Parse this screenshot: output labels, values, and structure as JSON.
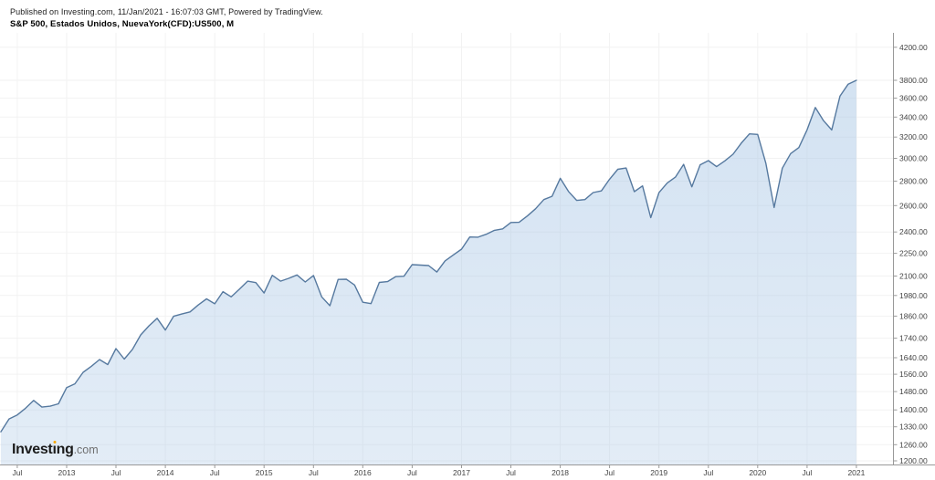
{
  "header": {
    "published": "Published on Investing.com, 11/Jan/2021 - 16:07:03 GMT, Powered by TradingView.",
    "title": "S&P 500, Estados Unidos, NuevaYork(CFD):US500, M"
  },
  "logo": {
    "part1": "Invest",
    "dotless_i": "ı",
    "part2": "ng",
    "tld": ".com"
  },
  "chart_data": {
    "type": "area",
    "title": "S&P 500, Estados Unidos, NuevaYork(CFD):US500, M",
    "symbol": "NuevaYork(CFD):US500",
    "interval": "M",
    "x_start": "May 2012",
    "x_end": "Jan 2021",
    "y_scale": "log",
    "ylim": [
      1185,
      4388
    ],
    "grid": true,
    "legend_position": "none",
    "y_ticks": [
      1200,
      1260,
      1330,
      1400,
      1480,
      1560,
      1640,
      1740,
      1860,
      1980,
      2100,
      2250,
      2400,
      2600,
      2800,
      3000,
      3200,
      3400,
      3600,
      3800,
      4200
    ],
    "x_ticks": [
      {
        "i": 2,
        "label": "Jul"
      },
      {
        "i": 8,
        "label": "2013"
      },
      {
        "i": 14,
        "label": "Jul"
      },
      {
        "i": 20,
        "label": "2014"
      },
      {
        "i": 26,
        "label": "Jul"
      },
      {
        "i": 32,
        "label": "2015"
      },
      {
        "i": 38,
        "label": "Jul"
      },
      {
        "i": 44,
        "label": "2016"
      },
      {
        "i": 50,
        "label": "Jul"
      },
      {
        "i": 56,
        "label": "2017"
      },
      {
        "i": 62,
        "label": "Jul"
      },
      {
        "i": 68,
        "label": "2018"
      },
      {
        "i": 74,
        "label": "Jul"
      },
      {
        "i": 80,
        "label": "2019"
      },
      {
        "i": 86,
        "label": "Jul"
      },
      {
        "i": 92,
        "label": "2020"
      },
      {
        "i": 98,
        "label": "Jul"
      },
      {
        "i": 104,
        "label": "2021"
      }
    ],
    "series": [
      {
        "name": "S&P 500 monthly close",
        "values": [
          1310,
          1362,
          1379,
          1407,
          1441,
          1412,
          1416,
          1426,
          1498,
          1515,
          1569,
          1598,
          1631,
          1606,
          1686,
          1633,
          1682,
          1757,
          1806,
          1848,
          1783,
          1859,
          1872,
          1884,
          1924,
          1960,
          1931,
          2003,
          1972,
          2018,
          2068,
          2059,
          1995,
          2105,
          2068,
          2086,
          2107,
          2063,
          2104,
          1972,
          1920,
          2079,
          2080,
          2044,
          1940,
          1932,
          2060,
          2065,
          2097,
          2099,
          2174,
          2171,
          2168,
          2126,
          2199,
          2239,
          2279,
          2364,
          2363,
          2384,
          2412,
          2423,
          2470,
          2472,
          2519,
          2575,
          2648,
          2674,
          2824,
          2714,
          2641,
          2648,
          2705,
          2718,
          2816,
          2902,
          2914,
          2712,
          2760,
          2507,
          2704,
          2784,
          2834,
          2946,
          2752,
          2942,
          2980,
          2926,
          2977,
          3038,
          3141,
          3231,
          3226,
          2954,
          2585,
          2912,
          3044,
          3100,
          3271,
          3500,
          3363,
          3270,
          3622,
          3756,
          3800
        ]
      }
    ],
    "colors": {
      "line": "#56799f",
      "fill_top": "rgba(168,198,229,0.50)",
      "fill_bottom": "rgba(168,198,229,0.32)",
      "grid": "#f2f2f2",
      "axis": "#999999",
      "tick_text": "#444444",
      "accent_logo_dot": "#f7a600"
    }
  }
}
